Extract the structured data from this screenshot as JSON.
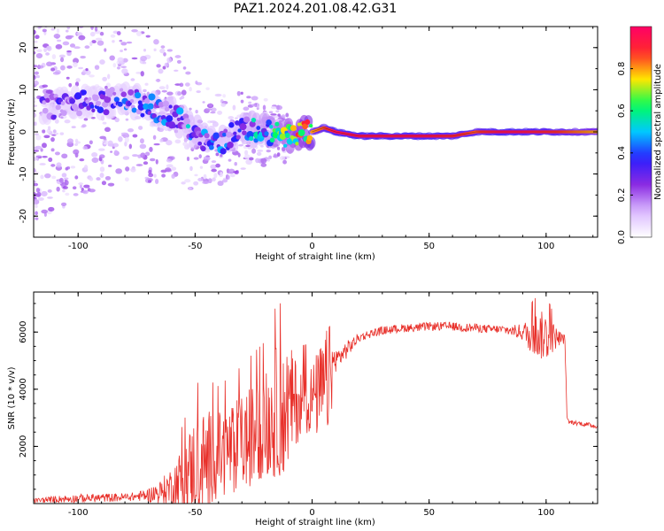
{
  "figure_title": "PAZ1.2024.201.08.42.G31",
  "colors": {
    "spectrogram_background": "#ffffff",
    "snr_line": "#e8302a",
    "axis": "#000000",
    "colormap": [
      "#ffffff",
      "#d9b8ff",
      "#8a2be2",
      "#2a1cff",
      "#00c8ff",
      "#00ff5a",
      "#ffe600",
      "#ff2a2a",
      "#ff0066"
    ]
  },
  "chart_data": [
    {
      "type": "heatmap",
      "title": "",
      "xlabel": "Height of straight line (km)",
      "ylabel": "Frequency (Hz)",
      "xlim": [
        -119,
        122
      ],
      "ylim": [
        -25,
        25
      ],
      "xticks": [
        -100,
        -50,
        0,
        50,
        100
      ],
      "yticks": [
        -20,
        -10,
        0,
        10,
        20
      ],
      "colorbar": {
        "label": "Normalized spectral amplitude",
        "ticks": [
          "0.0",
          "0.2",
          "0.4",
          "0.6",
          "0.8"
        ],
        "range": [
          0,
          1
        ],
        "colormap": "gist_rainbow_r-like"
      },
      "ridge": {
        "x": [
          -110,
          -100,
          -90,
          -80,
          -70,
          -60,
          -50,
          -45,
          -40,
          -30,
          -20,
          -10,
          0,
          5,
          10,
          20,
          30,
          40,
          50,
          60,
          70,
          80,
          90,
          100,
          110,
          120
        ],
        "frequency": [
          6,
          7,
          7,
          8,
          6,
          4,
          0,
          -2,
          -3,
          1,
          0,
          -1,
          0,
          1,
          0,
          -1,
          -1,
          -1,
          -1,
          -1,
          0,
          0,
          0,
          0,
          0,
          0
        ],
        "amplitude": [
          0.15,
          0.2,
          0.2,
          0.25,
          0.3,
          0.3,
          0.35,
          0.35,
          0.3,
          0.35,
          0.45,
          0.6,
          0.8,
          0.85,
          0.95,
          0.95,
          0.95,
          0.95,
          0.95,
          0.9,
          0.85,
          0.95,
          0.95,
          0.9,
          0.85,
          0.8
        ]
      }
    },
    {
      "type": "line",
      "title": "",
      "xlabel": "Height of straight line (km)",
      "ylabel": "SNR (10 * v/v)",
      "xlim": [
        -119,
        122
      ],
      "ylim": [
        0,
        7400
      ],
      "xticks": [
        -100,
        -50,
        0,
        50,
        100
      ],
      "yticks": [
        2000,
        4000,
        6000
      ],
      "series": [
        {
          "x": [
            -119,
            -110,
            -100,
            -90,
            -80,
            -75,
            -70,
            -65,
            -60,
            -55,
            -50,
            -45,
            -40,
            -35,
            -30,
            -25,
            -20,
            -15,
            -10,
            -5,
            0,
            5,
            8,
            10,
            15,
            20,
            25,
            30,
            35,
            40,
            45,
            50,
            55,
            60,
            65,
            70,
            75,
            80,
            85,
            90,
            95,
            100,
            105,
            108,
            109,
            110,
            115,
            122
          ],
          "values": [
            100,
            150,
            180,
            200,
            220,
            250,
            300,
            400,
            600,
            900,
            1300,
            1500,
            1700,
            1900,
            2100,
            2400,
            2800,
            3200,
            3400,
            3600,
            3700,
            3900,
            4600,
            5000,
            5400,
            5800,
            5950,
            6050,
            6100,
            6150,
            6150,
            6200,
            6200,
            6200,
            6150,
            6150,
            6100,
            6100,
            6050,
            6000,
            5900,
            5850,
            5800,
            5750,
            2900,
            2850,
            2800,
            2700
          ],
          "noise": [
            80,
            120,
            150,
            150,
            150,
            150,
            250,
            400,
            700,
            1200,
            1800,
            1800,
            1500,
            1600,
            1700,
            1800,
            1800,
            2400,
            2200,
            1200,
            1200,
            2000,
            1800,
            400,
            300,
            150,
            150,
            150,
            150,
            150,
            150,
            150,
            150,
            150,
            150,
            150,
            150,
            150,
            180,
            300,
            800,
            900,
            300,
            150,
            80,
            80,
            80,
            80
          ]
        }
      ]
    }
  ]
}
